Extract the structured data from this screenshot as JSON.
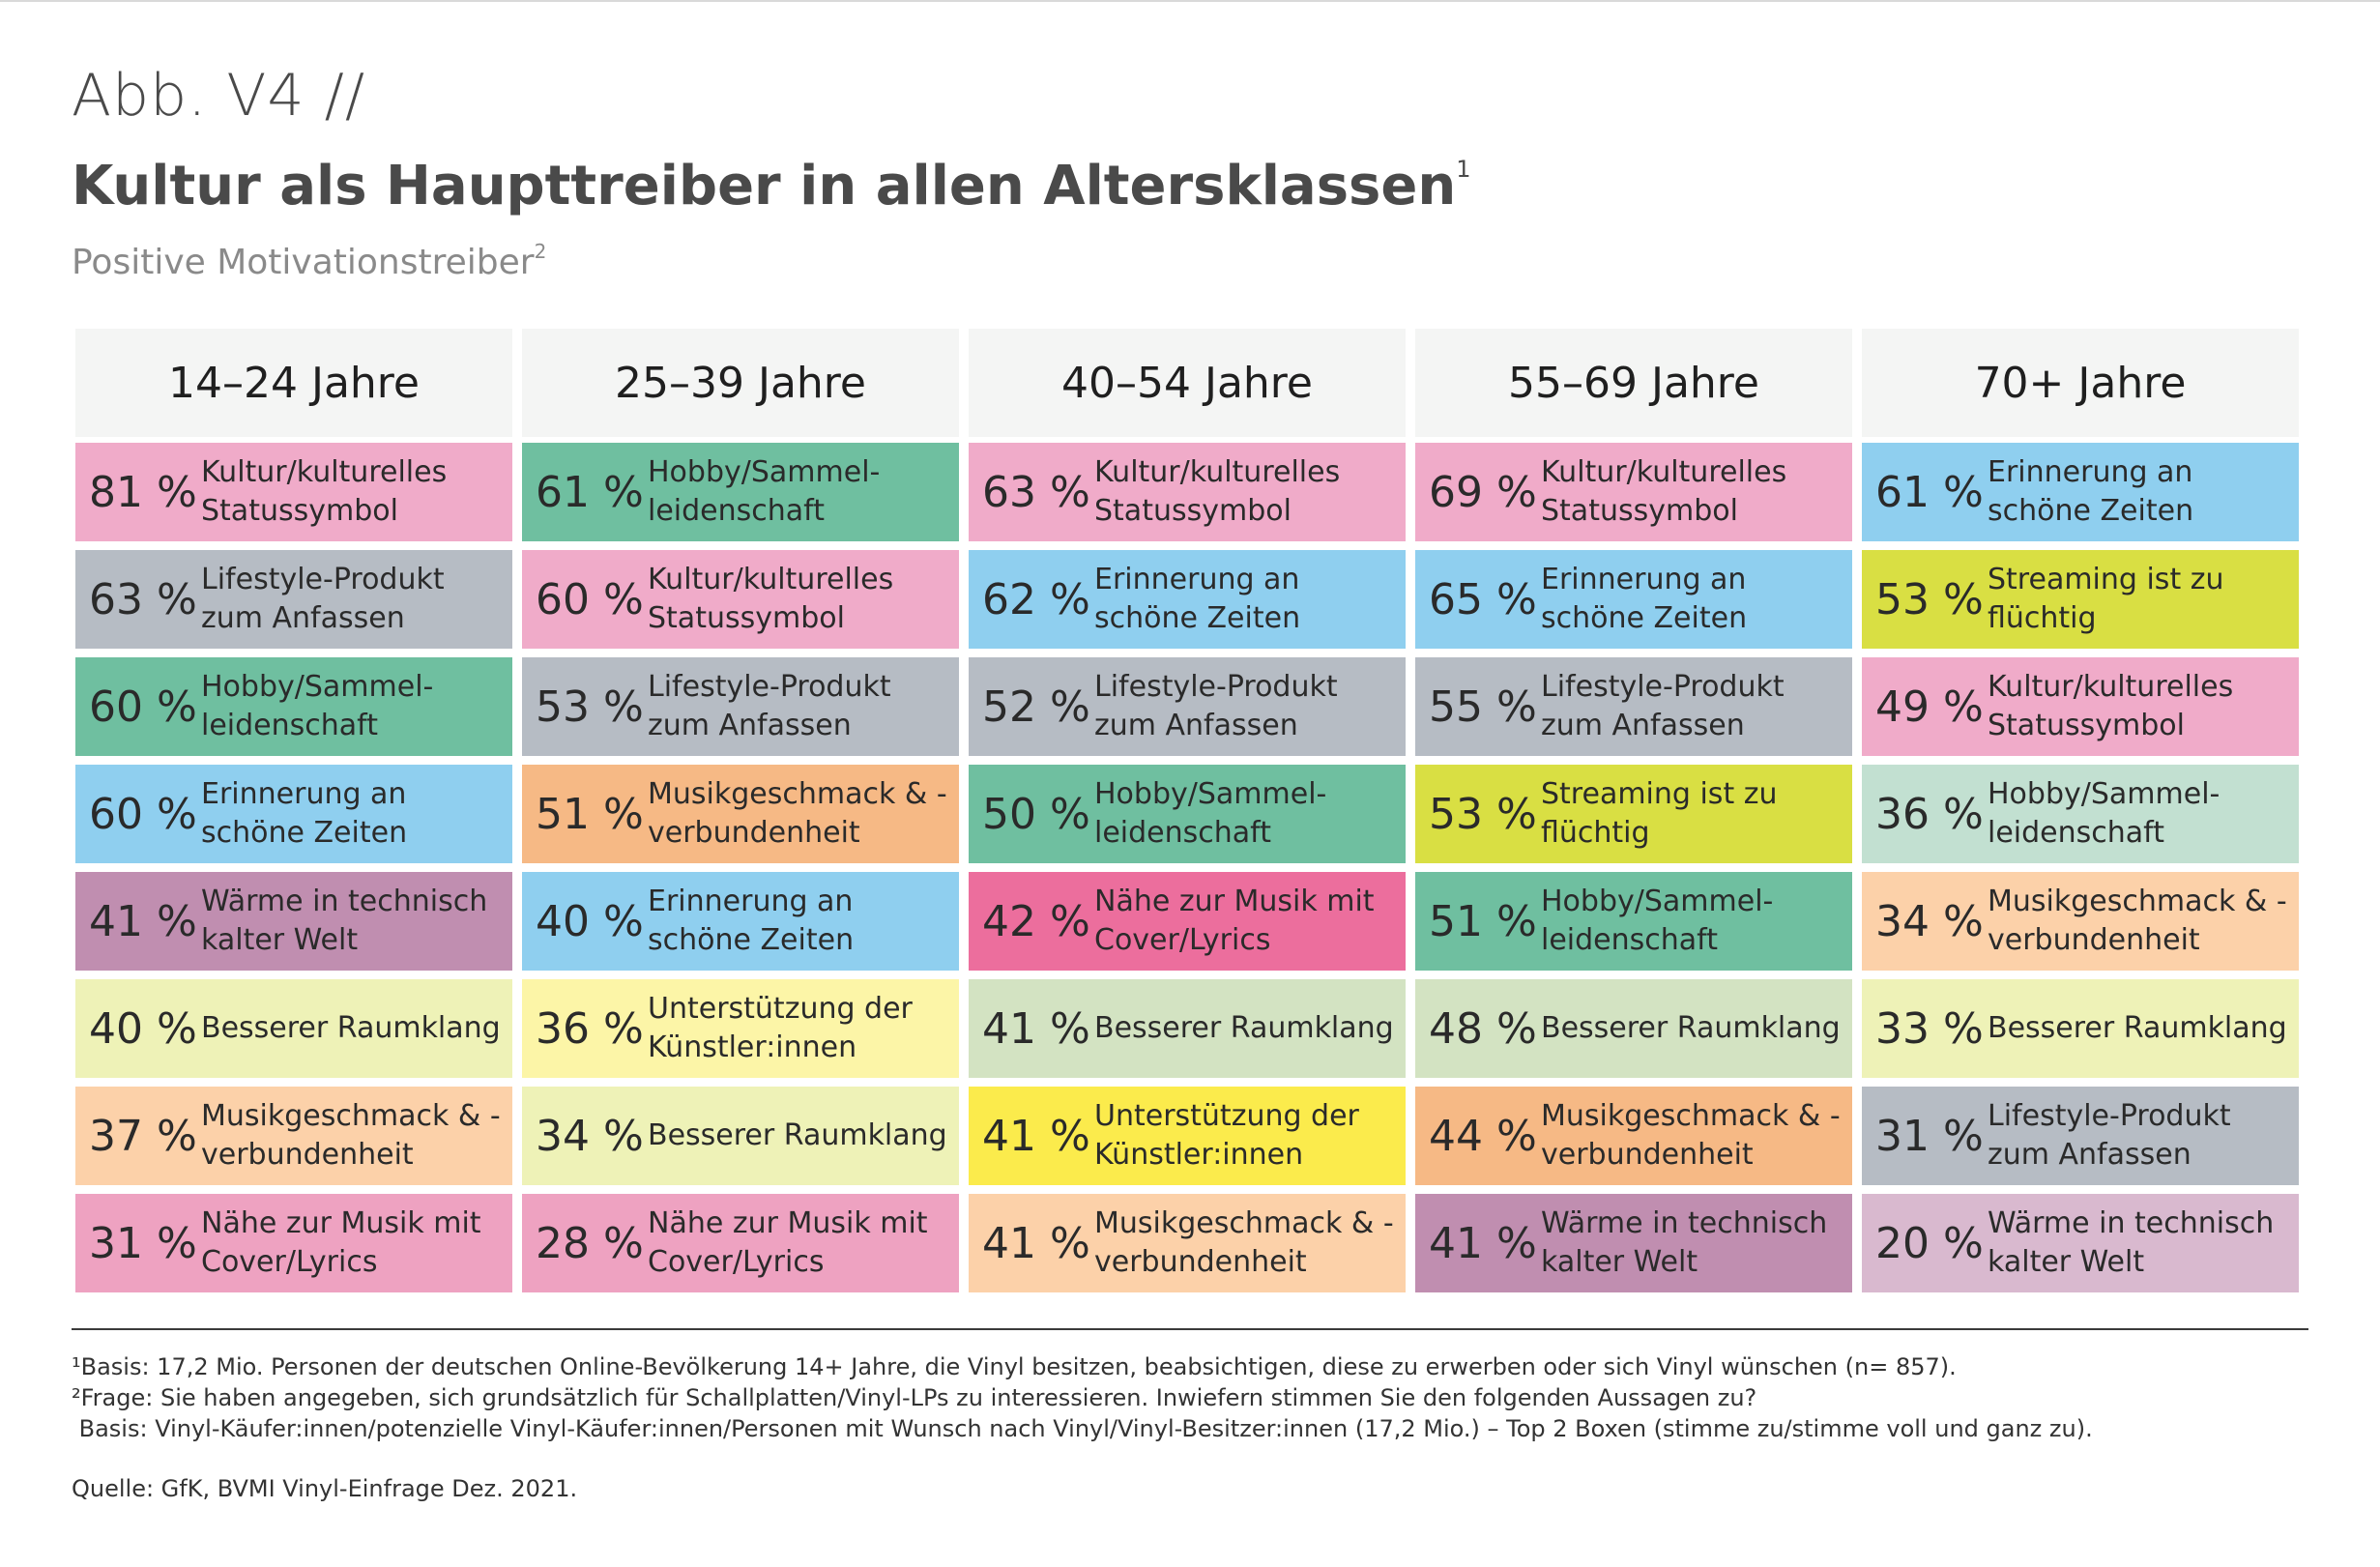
{
  "header": {
    "abb": "Abb. V4 //",
    "title": "Kultur als Haupttreiber in allen Altersklassen",
    "title_sup": "1",
    "subtitle": "Positive Motivationstreiber",
    "subtitle_sup": "2"
  },
  "colors": {
    "kultur": "#f0abc9",
    "lifestyle": "#b6bcc4",
    "hobby": "#6fbfa0",
    "erinnerung": "#8fcfef",
    "waerme": "#c08eb0",
    "raumklang": "#d3e3c2",
    "musikgeschmack": "#f6b985",
    "naehe": "#ec6e9d",
    "streaming": "#d9df43",
    "unterstuetzung": "#fbeb4c"
  },
  "chart_data": {
    "type": "table",
    "columns": [
      {
        "label": "14–24 Jahre",
        "rows": [
          {
            "value": "81 %",
            "label": "Kultur/kulturelles Statussymbol",
            "color": "#f0abc9"
          },
          {
            "value": "63 %",
            "label": "Lifestyle-Produkt zum Anfassen",
            "color": "#b6bcc4"
          },
          {
            "value": "60 %",
            "label": "Hobby/Sammel-leidenschaft",
            "color": "#6fbfa0"
          },
          {
            "value": "60 %",
            "label": "Erinnerung an schöne Zeiten",
            "color": "#8fcfef"
          },
          {
            "value": "41 %",
            "label": "Wärme in technisch kalter Welt",
            "color": "#c08eb0"
          },
          {
            "value": "40 %",
            "label": "Besserer Raumklang",
            "color": "#eef2b7"
          },
          {
            "value": "37 %",
            "label": "Musikgeschmack & -verbundenheit",
            "color": "#fcd1a9"
          },
          {
            "value": "31 %",
            "label": "Nähe zur Musik mit Cover/Lyrics",
            "color": "#eea2c1"
          }
        ]
      },
      {
        "label": "25–39 Jahre",
        "rows": [
          {
            "value": "61 %",
            "label": "Hobby/Sammel-leidenschaft",
            "color": "#6fbfa0"
          },
          {
            "value": "60 %",
            "label": "Kultur/kulturelles Statussymbol",
            "color": "#f0abc9"
          },
          {
            "value": "53 %",
            "label": "Lifestyle-Produkt zum Anfassen",
            "color": "#b6bcc4"
          },
          {
            "value": "51 %",
            "label": "Musikgeschmack & -verbundenheit",
            "color": "#f6b985"
          },
          {
            "value": "40 %",
            "label": "Erinnerung an schöne Zeiten",
            "color": "#8fcfef"
          },
          {
            "value": "36 %",
            "label": "Unterstützung der Künstler:innen",
            "color": "#fcf5a7"
          },
          {
            "value": "34 %",
            "label": "Besserer Raumklang",
            "color": "#eef2b7"
          },
          {
            "value": "28 %",
            "label": "Nähe zur Musik mit Cover/Lyrics",
            "color": "#eea2c1"
          }
        ]
      },
      {
        "label": "40–54 Jahre",
        "rows": [
          {
            "value": "63 %",
            "label": "Kultur/kulturelles Statussymbol",
            "color": "#f0abc9"
          },
          {
            "value": "62 %",
            "label": "Erinnerung an schöne Zeiten",
            "color": "#8fcfef"
          },
          {
            "value": "52 %",
            "label": "Lifestyle-Produkt zum Anfassen",
            "color": "#b6bcc4"
          },
          {
            "value": "50 %",
            "label": "Hobby/Sammel-leidenschaft",
            "color": "#6fbfa0"
          },
          {
            "value": "42 %",
            "label": "Nähe zur Musik mit Cover/Lyrics",
            "color": "#ec6e9d"
          },
          {
            "value": "41 %",
            "label": "Besserer Raumklang",
            "color": "#d3e3c2"
          },
          {
            "value": "41 %",
            "label": "Unterstützung der Künstler:innen",
            "color": "#fbeb4c"
          },
          {
            "value": "41 %",
            "label": "Musikgeschmack & -verbundenheit",
            "color": "#fcd1a9"
          }
        ]
      },
      {
        "label": "55–69 Jahre",
        "rows": [
          {
            "value": "69 %",
            "label": "Kultur/kulturelles Statussymbol",
            "color": "#f0abc9"
          },
          {
            "value": "65 %",
            "label": "Erinnerung an schöne Zeiten",
            "color": "#8fcfef"
          },
          {
            "value": "55 %",
            "label": "Lifestyle-Produkt zum Anfassen",
            "color": "#b6bcc4"
          },
          {
            "value": "53 %",
            "label": "Streaming ist zu flüchtig",
            "color": "#d9df43"
          },
          {
            "value": "51 %",
            "label": "Hobby/Sammel-leidenschaft",
            "color": "#6fbfa0"
          },
          {
            "value": "48 %",
            "label": "Besserer Raumklang",
            "color": "#d3e3c2"
          },
          {
            "value": "44 %",
            "label": "Musikgeschmack & -verbundenheit",
            "color": "#f6b985"
          },
          {
            "value": "41 %",
            "label": "Wärme in technisch kalter Welt",
            "color": "#c08eb0"
          }
        ]
      },
      {
        "label": "70+ Jahre",
        "rows": [
          {
            "value": "61 %",
            "label": "Erinnerung an schöne Zeiten",
            "color": "#8fcfef"
          },
          {
            "value": "53 %",
            "label": "Streaming ist zu flüchtig",
            "color": "#d9df43"
          },
          {
            "value": "49 %",
            "label": "Kultur/kulturelles Statussymbol",
            "color": "#f0abc9"
          },
          {
            "value": "36 %",
            "label": "Hobby/Sammel-leidenschaft",
            "color": "#c2e0d1"
          },
          {
            "value": "34 %",
            "label": "Musikgeschmack & -verbundenheit",
            "color": "#fcd1a9"
          },
          {
            "value": "33 %",
            "label": "Besserer Raumklang",
            "color": "#eef2b7"
          },
          {
            "value": "31 %",
            "label": "Lifestyle-Produkt zum Anfassen",
            "color": "#b6bcc4"
          },
          {
            "value": "20 %",
            "label": "Wärme in technisch kalter Welt",
            "color": "#d9b9cf"
          }
        ]
      }
    ]
  },
  "footnotes": {
    "note1": "¹Basis: 17,2 Mio. Personen der deutschen Online-Bevölkerung 14+ Jahre, die Vinyl besitzen, beabsichtigen, diese zu erwerben oder sich Vinyl wünschen (n= 857).",
    "note2": "²Frage: Sie haben angegeben, sich grundsätzlich für Schallplatten/Vinyl-LPs zu interessieren. Inwiefern stimmen Sie den folgenden Aussagen zu?",
    "note3": " Basis: Vinyl-Käufer:innen/potenzielle Vinyl-Käufer:innen/Personen mit Wunsch nach Vinyl/Vinyl-Besitzer:innen (17,2 Mio.) – Top 2 Boxen (stimme zu/stimme voll und ganz zu).",
    "source": "Quelle: GfK, BVMI Vinyl-Einfrage Dez. 2021."
  }
}
